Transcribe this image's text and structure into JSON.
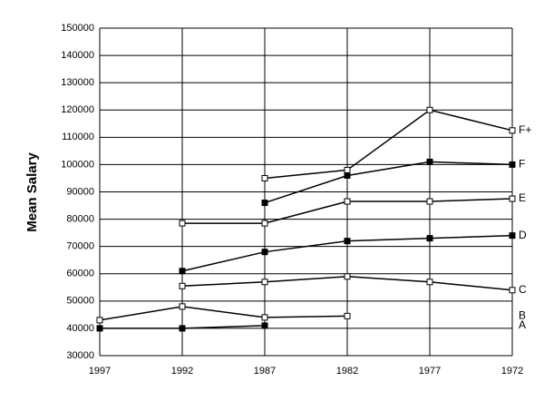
{
  "chart_data": {
    "type": "line",
    "y_label": "Mean Salary",
    "x": [
      1997,
      1992,
      1987,
      1982,
      1977,
      1972
    ],
    "xlim": [
      1997,
      1972
    ],
    "xticks": [
      1997,
      1992,
      1987,
      1982,
      1977,
      1972
    ],
    "ylim": [
      30000,
      150000
    ],
    "yticks": [
      30000,
      40000,
      50000,
      60000,
      70000,
      80000,
      90000,
      100000,
      110000,
      120000,
      130000,
      140000,
      150000
    ],
    "grid": true,
    "series": [
      {
        "name": "F+",
        "color": "#000000",
        "marker_fill": "#ffffff",
        "values": [
          null,
          null,
          95000,
          98000,
          120000,
          112500
        ]
      },
      {
        "name": "F",
        "color": "#000000",
        "marker_fill": "#000000",
        "values": [
          null,
          null,
          86000,
          96000,
          101000,
          100000
        ]
      },
      {
        "name": "E",
        "color": "#000000",
        "marker_fill": "#ffffff",
        "values": [
          null,
          78500,
          78500,
          86500,
          86500,
          87500
        ]
      },
      {
        "name": "D",
        "color": "#000000",
        "marker_fill": "#000000",
        "values": [
          null,
          61000,
          68000,
          72000,
          73000,
          74000
        ]
      },
      {
        "name": "C",
        "color": "#000000",
        "marker_fill": "#ffffff",
        "values": [
          null,
          55500,
          57000,
          59000,
          57000,
          54000
        ]
      },
      {
        "name": "B",
        "color": "#000000",
        "marker_fill": "#ffffff",
        "values": [
          43000,
          48000,
          44000,
          44500,
          null,
          null
        ]
      },
      {
        "name": "A",
        "color": "#000000",
        "marker_fill": "#000000",
        "values": [
          40000,
          40000,
          41000,
          null,
          null,
          null
        ]
      }
    ]
  }
}
